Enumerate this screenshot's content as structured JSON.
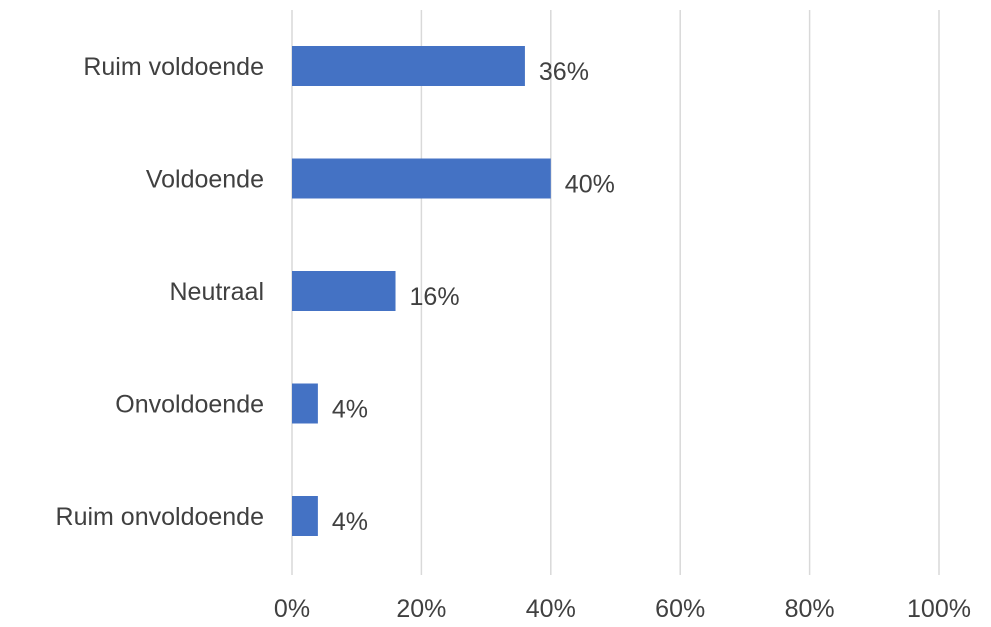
{
  "chart_data": {
    "type": "bar",
    "orientation": "horizontal",
    "categories": [
      "Ruim voldoende",
      "Voldoende",
      "Neutraal",
      "Onvoldoende",
      "Ruim onvoldoende"
    ],
    "values": [
      36,
      40,
      16,
      4,
      4
    ],
    "data_labels": [
      "36%",
      "40%",
      "16%",
      "4%",
      "4%"
    ],
    "x_ticks": [
      "0%",
      "20%",
      "40%",
      "60%",
      "80%",
      "100%"
    ],
    "xlim": [
      0,
      100
    ],
    "grid": true,
    "legend": "none",
    "colors": {
      "bar": "#4472C4",
      "grid": "#D9D9D9",
      "text": "#404040"
    }
  }
}
